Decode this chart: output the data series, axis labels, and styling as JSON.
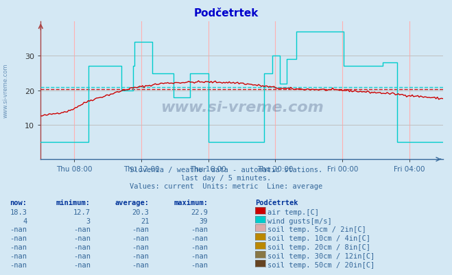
{
  "title": "Podčetrtek",
  "bg_color": "#d4e8f4",
  "plot_bg_color": "#d4e8f4",
  "subtitle1": "Slovenia / weather data - automatic stations.",
  "subtitle2": "last day / 5 minutes.",
  "subtitle3": "Values: current  Units: metric  Line: average",
  "air_temp_color": "#cc0000",
  "wind_gusts_color": "#00cccc",
  "avg_air_temp": 20.3,
  "avg_wind_gusts": 21,
  "ylim": [
    0,
    40
  ],
  "yticks": [
    10,
    20,
    30
  ],
  "title_color": "#0000cc",
  "watermark": "www.si-vreme.com",
  "grid_color_v": "#ffb0b0",
  "grid_color_h": "#c0c0c0",
  "xtick_labels": [
    "Thu 08:00",
    "Thu 12:00",
    "Thu 16:00",
    "Thu 20:00",
    "Fri 00:00",
    "Fri 04:00"
  ],
  "col_headers": [
    "now:",
    "minimum:",
    "average:",
    "maximum:",
    "Podčetrtek"
  ],
  "rows": [
    {
      "now": "18.3",
      "min": "12.7",
      "avg": "20.3",
      "max": "22.9",
      "color": "#cc0000",
      "label": "air temp.[C]"
    },
    {
      "now": "4",
      "min": "3",
      "avg": "21",
      "max": "39",
      "color": "#00cccc",
      "label": "wind gusts[m/s]"
    },
    {
      "now": "-nan",
      "min": "-nan",
      "avg": "-nan",
      "max": "-nan",
      "color": "#ddaaaa",
      "label": "soil temp. 5cm / 2in[C]"
    },
    {
      "now": "-nan",
      "min": "-nan",
      "avg": "-nan",
      "max": "-nan",
      "color": "#bb8800",
      "label": "soil temp. 10cm / 4in[C]"
    },
    {
      "now": "-nan",
      "min": "-nan",
      "avg": "-nan",
      "max": "-nan",
      "color": "#bb8800",
      "label": "soil temp. 20cm / 8in[C]"
    },
    {
      "now": "-nan",
      "min": "-nan",
      "avg": "-nan",
      "max": "-nan",
      "color": "#887744",
      "label": "soil temp. 30cm / 12in[C]"
    },
    {
      "now": "-nan",
      "min": "-nan",
      "avg": "-nan",
      "max": "-nan",
      "color": "#664422",
      "label": "soil temp. 50cm / 20in[C]"
    }
  ]
}
